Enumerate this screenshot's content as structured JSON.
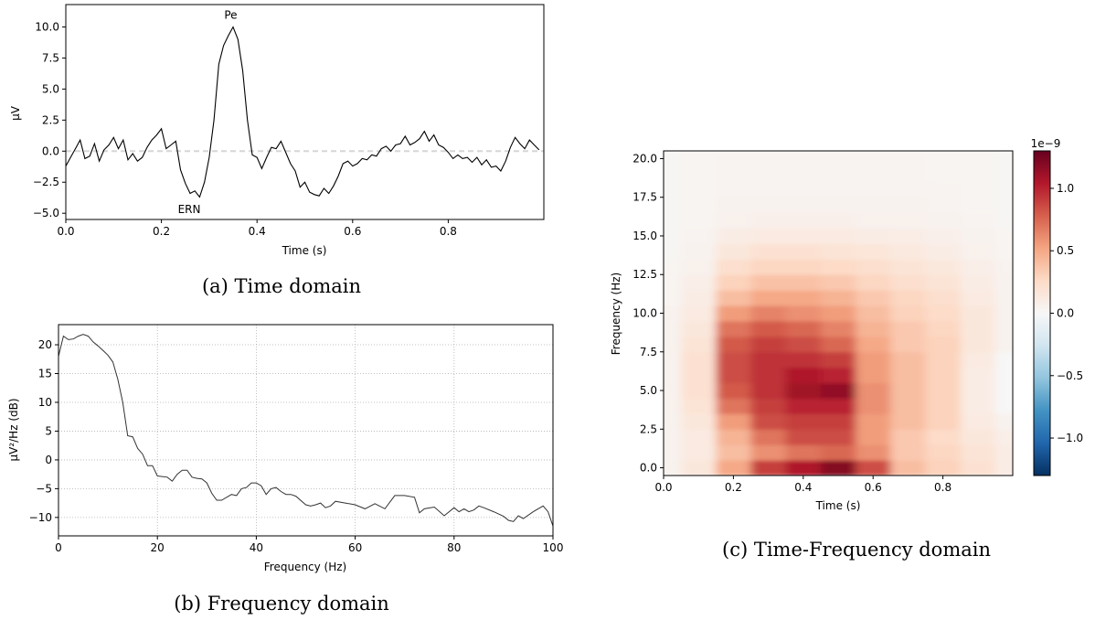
{
  "chart_data": [
    {
      "type": "line",
      "caption": "(a) Time domain",
      "xlabel": "Time (s)",
      "ylabel": "µV",
      "xlim": [
        0.0,
        1.0
      ],
      "ylim": [
        -5.5,
        11.8
      ],
      "xticks": [
        0.0,
        0.2,
        0.4,
        0.6,
        0.8
      ],
      "xtick_labels": [
        "0.0",
        "0.2",
        "0.4",
        "0.6",
        "0.8"
      ],
      "yticks": [
        -5.0,
        -2.5,
        0.0,
        2.5,
        5.0,
        7.5,
        10.0
      ],
      "ytick_labels": [
        "−5.0",
        "−2.5",
        "0.0",
        "2.5",
        "5.0",
        "7.5",
        "10.0"
      ],
      "baseline": 0.0,
      "annotations": [
        {
          "text": "Pe",
          "x": 0.345,
          "y": 10.0
        },
        {
          "text": "ERN",
          "x": 0.285,
          "y": -3.8
        }
      ],
      "series": [
        {
          "x": [
            0.0,
            0.01,
            0.02,
            0.03,
            0.04,
            0.05,
            0.06,
            0.07,
            0.08,
            0.09,
            0.1,
            0.11,
            0.12,
            0.13,
            0.14,
            0.15,
            0.16,
            0.17,
            0.18,
            0.19,
            0.2,
            0.21,
            0.22,
            0.23,
            0.24,
            0.25,
            0.26,
            0.27,
            0.28,
            0.29,
            0.3,
            0.31,
            0.32,
            0.33,
            0.34,
            0.35,
            0.36,
            0.37,
            0.38,
            0.39,
            0.4,
            0.41,
            0.42,
            0.43,
            0.44,
            0.45,
            0.46,
            0.47,
            0.48,
            0.49,
            0.5,
            0.51,
            0.52,
            0.53,
            0.54,
            0.55,
            0.56,
            0.57,
            0.58,
            0.59,
            0.6,
            0.61,
            0.62,
            0.63,
            0.64,
            0.65,
            0.66,
            0.67,
            0.68,
            0.69,
            0.7,
            0.71,
            0.72,
            0.73,
            0.74,
            0.75,
            0.76,
            0.77,
            0.78,
            0.79,
            0.8,
            0.81,
            0.82,
            0.83,
            0.84,
            0.85,
            0.86,
            0.87,
            0.88,
            0.89,
            0.9,
            0.91,
            0.92,
            0.93,
            0.94,
            0.95,
            0.96,
            0.97,
            0.98,
            0.99
          ],
          "y": [
            -1.2,
            -0.5,
            0.2,
            0.9,
            -0.6,
            -0.4,
            0.6,
            -0.8,
            0.1,
            0.5,
            1.1,
            0.2,
            0.9,
            -0.7,
            -0.2,
            -0.8,
            -0.5,
            0.3,
            0.9,
            1.3,
            1.8,
            0.2,
            0.5,
            0.8,
            -1.5,
            -2.6,
            -3.4,
            -3.2,
            -3.7,
            -2.5,
            -0.5,
            2.5,
            7.0,
            8.5,
            9.3,
            10.0,
            9.0,
            6.5,
            2.5,
            -0.3,
            -0.5,
            -1.4,
            -0.5,
            0.3,
            0.2,
            0.8,
            -0.1,
            -1.0,
            -1.6,
            -2.9,
            -2.5,
            -3.3,
            -3.5,
            -3.6,
            -3.0,
            -3.4,
            -2.8,
            -2.0,
            -1.0,
            -0.8,
            -1.2,
            -1.0,
            -0.6,
            -0.7,
            -0.3,
            -0.4,
            0.2,
            0.4,
            0.0,
            0.5,
            0.6,
            1.2,
            0.5,
            0.7,
            1.0,
            1.6,
            0.8,
            1.3,
            0.5,
            0.3,
            -0.1,
            -0.6,
            -0.3,
            -0.6,
            -0.5,
            -0.9,
            -0.5,
            -1.1,
            -0.7,
            -1.3,
            -1.2,
            -1.6,
            -0.8,
            0.3,
            1.1,
            0.6,
            0.2,
            0.9,
            0.5,
            0.1
          ]
        }
      ]
    },
    {
      "type": "line",
      "caption": "(b) Frequency domain",
      "xlabel": "Frequency (Hz)",
      "ylabel": "µV²/Hz (dB)",
      "xlim": [
        0,
        100
      ],
      "ylim": [
        -13.2,
        23.5
      ],
      "xticks": [
        0,
        20,
        40,
        60,
        80,
        100
      ],
      "xtick_labels": [
        "0",
        "20",
        "40",
        "60",
        "80",
        "100"
      ],
      "yticks": [
        -10,
        -5,
        0,
        5,
        10,
        15,
        20
      ],
      "ytick_labels": [
        "−10",
        "−5",
        "0",
        "5",
        "10",
        "15",
        "20"
      ],
      "grid": true,
      "series": [
        {
          "x": [
            0,
            1,
            2,
            3,
            4,
            5,
            6,
            7,
            8,
            9,
            10,
            11,
            12,
            13,
            14,
            15,
            16,
            17,
            18,
            19,
            20,
            22,
            23,
            24,
            25,
            26,
            27,
            28,
            29,
            30,
            31,
            32,
            33,
            35,
            36,
            37,
            38,
            39,
            40,
            41,
            42,
            43,
            44,
            45,
            46,
            47,
            48,
            50,
            51,
            52,
            53,
            54,
            55,
            56,
            58,
            60,
            62,
            64,
            66,
            68,
            70,
            72,
            73,
            74,
            76,
            78,
            80,
            81,
            82,
            83,
            84,
            85,
            86,
            88,
            90,
            91,
            92,
            93,
            94,
            96,
            98,
            99,
            100
          ],
          "y": [
            18,
            21.5,
            20.9,
            21.0,
            21.5,
            21.8,
            21.5,
            20.5,
            19.8,
            19.0,
            18.2,
            17.0,
            14.0,
            10.0,
            4.2,
            4.0,
            2.0,
            1.0,
            -1.0,
            -1.0,
            -2.8,
            -3.0,
            -3.7,
            -2.5,
            -1.8,
            -1.8,
            -3.0,
            -3.2,
            -3.3,
            -4.0,
            -5.8,
            -7.0,
            -7.0,
            -6.0,
            -6.2,
            -5.0,
            -4.8,
            -4.0,
            -4.0,
            -4.5,
            -6.0,
            -5.0,
            -4.8,
            -5.5,
            -6.0,
            -6.0,
            -6.3,
            -7.8,
            -8.0,
            -7.8,
            -7.5,
            -8.3,
            -8.0,
            -7.2,
            -7.5,
            -7.8,
            -8.5,
            -7.6,
            -8.5,
            -6.2,
            -6.2,
            -6.5,
            -9.2,
            -8.5,
            -8.2,
            -9.7,
            -8.3,
            -9.0,
            -8.5,
            -9.0,
            -8.7,
            -8.0,
            -8.3,
            -9.0,
            -9.8,
            -10.5,
            -10.7,
            -9.7,
            -10.2,
            -9.0,
            -8.0,
            -9.0,
            -11.5
          ]
        }
      ]
    },
    {
      "type": "heatmap",
      "caption": "(c) Time-Frequency domain",
      "xlabel": "Time (s)",
      "ylabel": "Frequency (Hz)",
      "xlim": [
        0.0,
        1.0
      ],
      "ylim": [
        -0.5,
        20.5
      ],
      "xticks": [
        0.0,
        0.2,
        0.4,
        0.6,
        0.8
      ],
      "xtick_labels": [
        "0.0",
        "0.2",
        "0.4",
        "0.6",
        "0.8"
      ],
      "yticks": [
        0.0,
        2.5,
        5.0,
        7.5,
        10.0,
        12.5,
        15.0,
        17.5,
        20.0
      ],
      "ytick_labels": [
        "0.0",
        "2.5",
        "5.0",
        "7.5",
        "10.0",
        "12.5",
        "15.0",
        "17.5",
        "20.0"
      ],
      "colorbar": {
        "colormap": "RdBu_r",
        "range": [
          -1.3e-09,
          1.3e-09
        ],
        "ticks": [
          -1.0,
          -0.5,
          0.0,
          0.5,
          1.0
        ],
        "tick_labels": [
          "−1.0",
          "−0.5",
          "0.0",
          "0.5",
          "1.0"
        ],
        "offset_text": "1e−9"
      },
      "times": [
        0.0,
        0.1,
        0.2,
        0.3,
        0.4,
        0.5,
        0.6,
        0.7,
        0.8,
        0.9,
        1.0
      ],
      "freqs": [
        0,
        1,
        2,
        3,
        4,
        5,
        6,
        7,
        8,
        9,
        10,
        11,
        12,
        13,
        14,
        15,
        16,
        17,
        18,
        19,
        20
      ],
      "values": [
        [
          0.05,
          0.15,
          0.5,
          0.9,
          1.05,
          1.2,
          0.85,
          0.4,
          0.3,
          0.2,
          0.1
        ],
        [
          0.05,
          0.12,
          0.4,
          0.6,
          0.7,
          0.75,
          0.6,
          0.35,
          0.28,
          0.18,
          0.1
        ],
        [
          0.05,
          0.12,
          0.45,
          0.7,
          0.85,
          0.85,
          0.55,
          0.35,
          0.25,
          0.15,
          0.08
        ],
        [
          0.05,
          0.15,
          0.55,
          0.85,
          0.9,
          0.9,
          0.55,
          0.4,
          0.3,
          0.12,
          0.05
        ],
        [
          0.05,
          0.18,
          0.7,
          0.9,
          1.0,
          1.0,
          0.6,
          0.4,
          0.3,
          0.1,
          0.0
        ],
        [
          0.05,
          0.2,
          0.8,
          0.95,
          1.1,
          1.15,
          0.6,
          0.4,
          0.3,
          0.1,
          0.0
        ],
        [
          0.05,
          0.2,
          0.85,
          0.95,
          1.05,
          1.0,
          0.55,
          0.4,
          0.3,
          0.1,
          0.0
        ],
        [
          0.05,
          0.2,
          0.85,
          0.95,
          0.95,
          0.9,
          0.55,
          0.4,
          0.3,
          0.12,
          0.0
        ],
        [
          0.05,
          0.18,
          0.8,
          0.9,
          0.85,
          0.75,
          0.5,
          0.35,
          0.3,
          0.15,
          0.05
        ],
        [
          0.05,
          0.15,
          0.7,
          0.8,
          0.75,
          0.65,
          0.45,
          0.35,
          0.28,
          0.15,
          0.05
        ],
        [
          0.05,
          0.12,
          0.55,
          0.65,
          0.6,
          0.55,
          0.4,
          0.3,
          0.25,
          0.15,
          0.05
        ],
        [
          0.03,
          0.1,
          0.4,
          0.5,
          0.5,
          0.45,
          0.35,
          0.28,
          0.22,
          0.12,
          0.05
        ],
        [
          0.03,
          0.08,
          0.3,
          0.38,
          0.38,
          0.35,
          0.28,
          0.22,
          0.18,
          0.1,
          0.05
        ],
        [
          0.03,
          0.06,
          0.22,
          0.28,
          0.28,
          0.26,
          0.22,
          0.18,
          0.14,
          0.08,
          0.04
        ],
        [
          0.02,
          0.05,
          0.15,
          0.2,
          0.2,
          0.18,
          0.16,
          0.13,
          0.1,
          0.06,
          0.03
        ],
        [
          0.02,
          0.04,
          0.1,
          0.12,
          0.12,
          0.12,
          0.1,
          0.09,
          0.07,
          0.05,
          0.03
        ],
        [
          0.02,
          0.03,
          0.06,
          0.07,
          0.07,
          0.07,
          0.06,
          0.06,
          0.05,
          0.04,
          0.02
        ],
        [
          0.02,
          0.03,
          0.05,
          0.05,
          0.05,
          0.05,
          0.05,
          0.05,
          0.04,
          0.03,
          0.02
        ],
        [
          0.02,
          0.03,
          0.04,
          0.04,
          0.04,
          0.04,
          0.04,
          0.04,
          0.04,
          0.03,
          0.02
        ],
        [
          0.02,
          0.03,
          0.04,
          0.04,
          0.04,
          0.04,
          0.04,
          0.04,
          0.03,
          0.03,
          0.02
        ],
        [
          0.02,
          0.03,
          0.04,
          0.04,
          0.04,
          0.04,
          0.04,
          0.04,
          0.03,
          0.03,
          0.02
        ]
      ]
    }
  ]
}
